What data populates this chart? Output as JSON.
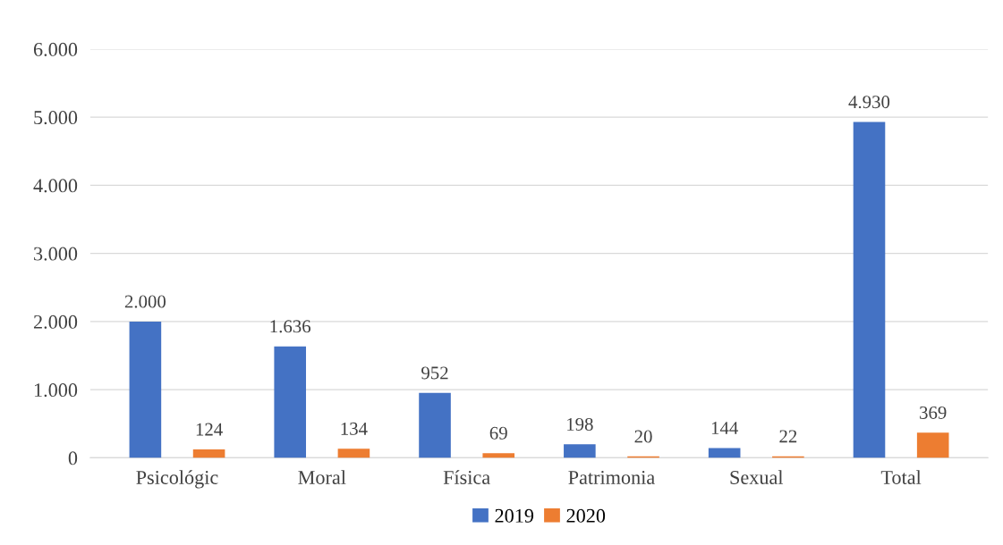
{
  "chart_data": {
    "type": "bar",
    "categories": [
      "Psicológic",
      "Moral",
      "Física",
      "Patrimonia",
      "Sexual",
      "Total"
    ],
    "series": [
      {
        "name": "2019",
        "color": "#4472c4",
        "values": [
          2000,
          1636,
          952,
          198,
          144,
          4930
        ],
        "value_labels": [
          "2.000",
          "1.636",
          "952",
          "198",
          "144",
          "4.930"
        ]
      },
      {
        "name": "2020",
        "color": "#ed7d31",
        "values": [
          124,
          134,
          69,
          20,
          22,
          369
        ],
        "value_labels": [
          "124",
          "134",
          "69",
          "20",
          "22",
          "369"
        ]
      }
    ],
    "ylim": [
      0,
      6000
    ],
    "yticks": [
      {
        "value": 0,
        "label": "0"
      },
      {
        "value": 1000,
        "label": "1.000"
      },
      {
        "value": 2000,
        "label": "2.000"
      },
      {
        "value": 3000,
        "label": "3.000"
      },
      {
        "value": 4000,
        "label": "4.000"
      },
      {
        "value": 5000,
        "label": "5.000"
      },
      {
        "value": 6000,
        "label": "6.000"
      }
    ],
    "grid": "y",
    "legend": "bottom"
  }
}
